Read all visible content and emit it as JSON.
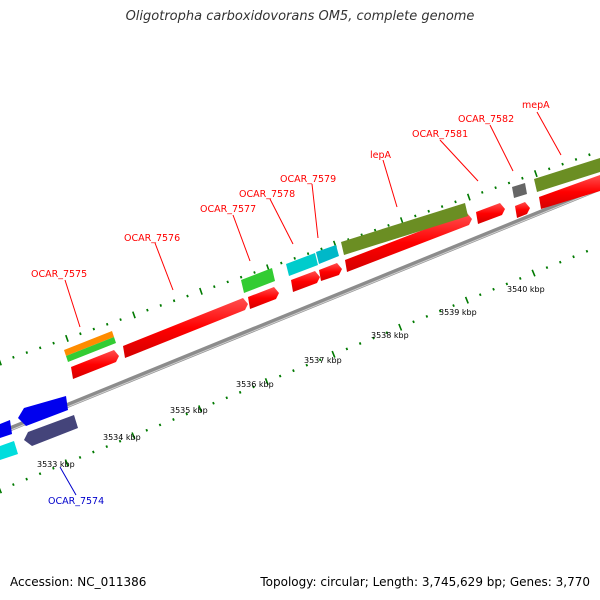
{
  "header": {
    "title": "Oligotropha carboxidovorans OM5, complete genome"
  },
  "footer": {
    "accession": "Accession: NC_011386",
    "summary": "Topology: circular; Length: 3,745,629 bp; Genes: 3,770"
  },
  "colors": {
    "forward_label": "#ff0000",
    "reverse_label": "#0000cc",
    "backbone": "#8c8c8c",
    "tick": "#007a00",
    "cds": "#ff0000",
    "rrna_orange": "#ff8c00",
    "green": "#33cc33",
    "cyan": "#00cccc",
    "olive": "#6b8e23",
    "grey": "#666666",
    "blue": "#0000ee",
    "slate": "#44447a"
  },
  "scale_labels": [
    "3533 kbp",
    "3534 kbp",
    "3535 kbp",
    "3536 kbp",
    "3537 kbp",
    "3538 kbp",
    "3539 kbp",
    "3540 kbp"
  ],
  "gene_labels": [
    "OCAR_7575",
    "OCAR_7576",
    "OCAR_7577",
    "OCAR_7578",
    "OCAR_7579",
    "lepA",
    "OCAR_7581",
    "OCAR_7582",
    "mepA",
    "OCAR_7574"
  ]
}
